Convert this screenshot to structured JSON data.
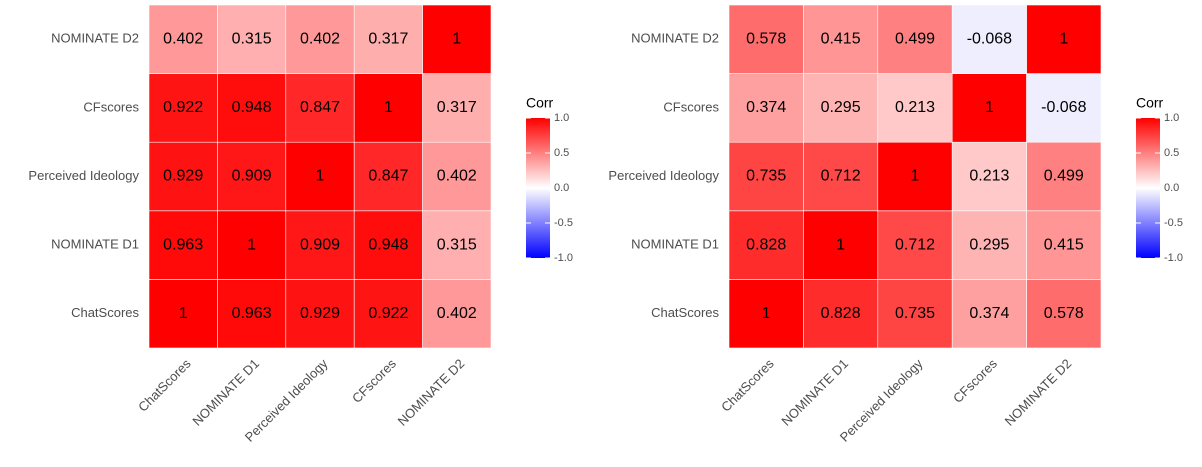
{
  "chart_data": [
    {
      "type": "heatmap",
      "x": [
        "ChatScores",
        "NOMINATE D1",
        "Perceived Ideology",
        "CFscores",
        "NOMINATE D2"
      ],
      "y": [
        "ChatScores",
        "NOMINATE D1",
        "Perceived Ideology",
        "CFscores",
        "NOMINATE D2"
      ],
      "values": [
        [
          1,
          0.963,
          0.929,
          0.922,
          0.402
        ],
        [
          0.963,
          1,
          0.909,
          0.948,
          0.315
        ],
        [
          0.929,
          0.909,
          1,
          0.847,
          0.402
        ],
        [
          0.922,
          0.948,
          0.847,
          1,
          0.317
        ],
        [
          0.402,
          0.315,
          0.402,
          0.317,
          1
        ]
      ],
      "legend_title": "Corr",
      "colors": {
        "low": "#0000ff",
        "mid": "#ffffff",
        "high": "#ff0000"
      },
      "clim": [
        -1,
        1
      ],
      "cticks": [
        {
          "value": 1,
          "label": "1.0"
        },
        {
          "value": 0.5,
          "label": "0.5"
        },
        {
          "value": 0,
          "label": "0.0"
        },
        {
          "value": -0.5,
          "label": "-0.5"
        },
        {
          "value": -1,
          "label": "-1.0"
        }
      ]
    },
    {
      "type": "heatmap",
      "x": [
        "ChatScores",
        "NOMINATE D1",
        "Perceived Ideology",
        "CFscores",
        "NOMINATE D2"
      ],
      "y": [
        "ChatScores",
        "NOMINATE D1",
        "Perceived Ideology",
        "CFscores",
        "NOMINATE D2"
      ],
      "values": [
        [
          1,
          0.828,
          0.735,
          0.374,
          0.578
        ],
        [
          0.828,
          1,
          0.712,
          0.295,
          0.415
        ],
        [
          0.735,
          0.712,
          1,
          0.213,
          0.499
        ],
        [
          0.374,
          0.295,
          0.213,
          1,
          -0.068
        ],
        [
          0.578,
          0.415,
          0.499,
          -0.068,
          1
        ]
      ],
      "legend_title": "Corr",
      "colors": {
        "low": "#0000ff",
        "mid": "#ffffff",
        "high": "#ff0000"
      },
      "clim": [
        -1,
        1
      ],
      "cticks": [
        {
          "value": 1,
          "label": "1.0"
        },
        {
          "value": 0.5,
          "label": "0.5"
        },
        {
          "value": 0,
          "label": "0.0"
        },
        {
          "value": -0.5,
          "label": "-0.5"
        },
        {
          "value": -1,
          "label": "-1.0"
        }
      ]
    }
  ]
}
